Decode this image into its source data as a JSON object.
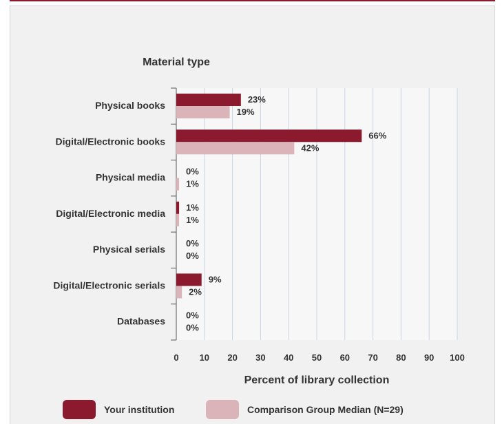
{
  "chart_data": {
    "type": "bar",
    "orientation": "horizontal",
    "title": "Material type",
    "xlabel": "Percent of library collection",
    "xlim": [
      0,
      100
    ],
    "xticks": [
      0,
      10,
      20,
      30,
      40,
      50,
      60,
      70,
      80,
      90,
      100
    ],
    "grid": true,
    "legend_position": "bottom",
    "categories": [
      "Physical books",
      "Digital/Electronic books",
      "Physical media",
      "Digital/Electronic media",
      "Physical serials",
      "Digital/Electronic serials",
      "Databases"
    ],
    "series": [
      {
        "name": "Your institution",
        "color": "#8b1a2e",
        "values": [
          23,
          66,
          0,
          1,
          0,
          9,
          0
        ]
      },
      {
        "name": "Comparison Group Median (N=29)",
        "color": "#dbb4ba",
        "values": [
          19,
          42,
          1,
          1,
          0,
          2,
          0
        ]
      }
    ],
    "value_labels": [
      [
        "23%",
        "66%",
        "0%",
        "1%",
        "0%",
        "9%",
        "0%"
      ],
      [
        "19%",
        "42%",
        "1%",
        "1%",
        "0%",
        "2%",
        "0%"
      ]
    ]
  }
}
